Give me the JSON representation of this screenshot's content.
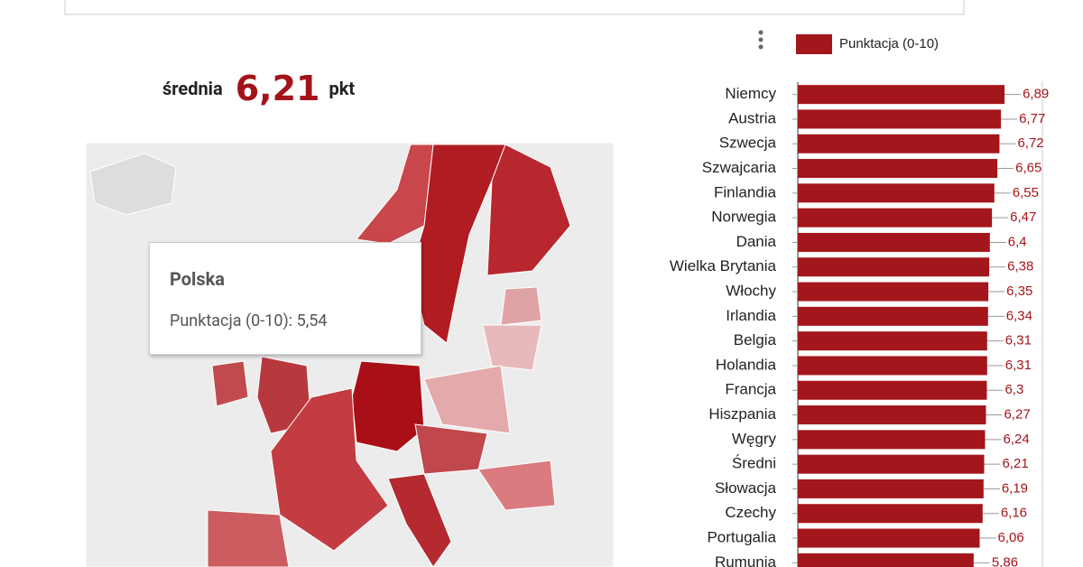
{
  "average": {
    "label": "średnia",
    "value_label": "6,21",
    "unit": "pkt"
  },
  "tooltip": {
    "title": "Polska",
    "text": "Punktacja (0-10): 5,54"
  },
  "chart_data": {
    "type": "bar",
    "orientation": "horizontal",
    "color": "#a3161b",
    "series_name": "Punktacja (0-10)",
    "categories": [
      "Niemcy",
      "Austria",
      "Szwecja",
      "Szwajcaria",
      "Finlandia",
      "Norwegia",
      "Dania",
      "Wielka Brytania",
      "Włochy",
      "Irlandia",
      "Belgia",
      "Holandia",
      "Francja",
      "Hiszpania",
      "Węgry",
      "Średni",
      "Słowacja",
      "Czechy",
      "Portugalia",
      "Rumunia"
    ],
    "values": [
      6.89,
      6.77,
      6.72,
      6.65,
      6.55,
      6.47,
      6.4,
      6.38,
      6.35,
      6.34,
      6.31,
      6.31,
      6.3,
      6.27,
      6.24,
      6.21,
      6.19,
      6.16,
      6.06,
      5.86
    ],
    "value_labels": [
      "6,89",
      "6,77",
      "6,72",
      "6,65",
      "6,55",
      "6,47",
      "6,4",
      "6,38",
      "6,35",
      "6,34",
      "6,31",
      "6,31",
      "6,3",
      "6,27",
      "6,24",
      "6,21",
      "6,19",
      "6,16",
      "6,06",
      "5,86"
    ],
    "xlim": [
      0,
      8
    ]
  }
}
